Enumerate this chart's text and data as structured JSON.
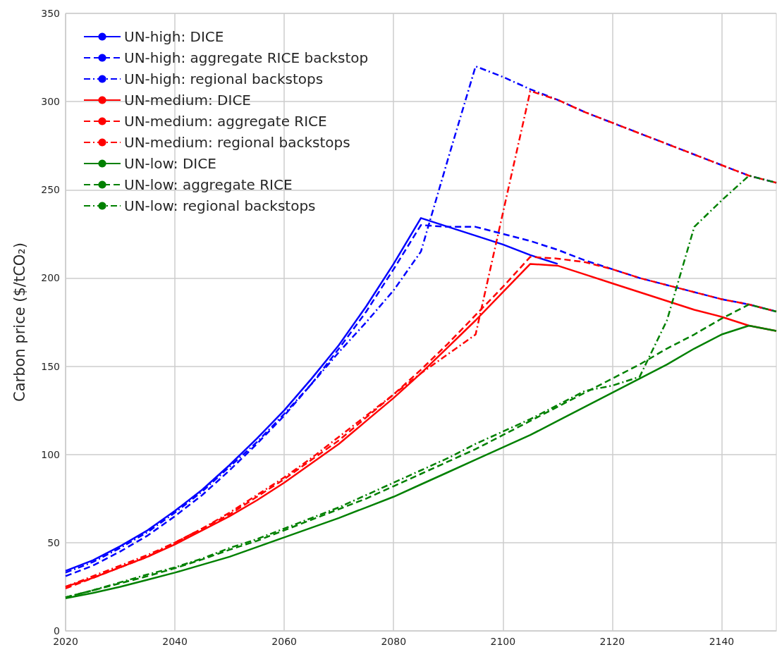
{
  "chart_data": {
    "type": "line",
    "ylabel": "Carbon price ($/tCO₂)",
    "x": [
      2020,
      2025,
      2030,
      2035,
      2040,
      2045,
      2050,
      2055,
      2060,
      2065,
      2070,
      2075,
      2080,
      2085,
      2090,
      2095,
      2100,
      2105,
      2110,
      2115,
      2120,
      2125,
      2130,
      2135,
      2140,
      2145,
      2150
    ],
    "xlim": [
      2020,
      2150
    ],
    "xticks": [
      2020,
      2040,
      2060,
      2080,
      2100,
      2120,
      2140
    ],
    "ylim": [
      0,
      350
    ],
    "yticks": [
      0,
      50,
      100,
      150,
      200,
      250,
      300,
      350
    ],
    "grid": true,
    "legend": "top left",
    "marker": "none",
    "series": [
      {
        "name": "UN-high: DICE",
        "color": "#0000ff",
        "line_style": "solid",
        "values": [
          34,
          40,
          48,
          57,
          68,
          80,
          94,
          109,
          125,
          143,
          162,
          184,
          208,
          234,
          229,
          224,
          219,
          213,
          208,
          null,
          null,
          null,
          null,
          null,
          null,
          null,
          null
        ]
      },
      {
        "name": "UN-high: aggregate RICE backstop",
        "color": "#0000ff",
        "line_style": "dashed",
        "values": [
          31,
          37,
          45,
          54,
          65,
          77,
          91,
          106,
          122,
          140,
          160,
          181,
          205,
          230,
          229,
          229,
          225,
          221,
          216,
          210,
          205,
          200,
          196,
          192,
          188,
          185,
          181
        ]
      },
      {
        "name": "UN-high: regional backstops",
        "color": "#0000ff",
        "line_style": "dotted",
        "values": [
          33,
          39,
          47,
          56,
          67,
          79,
          93,
          107,
          123,
          140,
          158,
          175,
          193,
          215,
          268,
          320,
          314,
          307,
          301,
          294,
          288,
          282,
          276,
          270,
          264,
          258,
          254
        ]
      },
      {
        "name": "UN-medium: DICE",
        "color": "#ff0000",
        "line_style": "solid",
        "values": [
          25,
          30,
          36,
          42,
          49,
          57,
          65,
          74,
          84,
          95,
          106,
          119,
          132,
          146,
          161,
          176,
          192,
          208,
          207,
          202,
          197,
          192,
          187,
          182,
          178,
          173,
          170
        ]
      },
      {
        "name": "UN-medium: aggregate RICE",
        "color": "#ff0000",
        "line_style": "dashed",
        "values": [
          24,
          30,
          36,
          42,
          50,
          58,
          66,
          76,
          86,
          97,
          108,
          121,
          134,
          148,
          163,
          179,
          195,
          212,
          211,
          209,
          205,
          200,
          196,
          192,
          188,
          185,
          181
        ]
      },
      {
        "name": "UN-medium: regional backstops",
        "color": "#ff0000",
        "line_style": "dotted",
        "values": [
          25,
          31,
          37,
          43,
          50,
          58,
          67,
          77,
          87,
          98,
          110,
          122,
          134,
          146,
          157,
          168,
          237,
          306,
          301,
          294,
          288,
          282,
          276,
          270,
          264,
          258,
          254
        ]
      },
      {
        "name": "UN-low: DICE",
        "color": "#008000",
        "line_style": "solid",
        "values": [
          18.5,
          21.5,
          25,
          29,
          33,
          37.5,
          42,
          47.5,
          53,
          58.5,
          64,
          70,
          76,
          83,
          90,
          97,
          104,
          111,
          119,
          127,
          135,
          143,
          151,
          160,
          168,
          173,
          170
        ]
      },
      {
        "name": "UN-low: aggregate RICE",
        "color": "#008000",
        "line_style": "dashed",
        "values": [
          19,
          23,
          27,
          31,
          35.5,
          40.5,
          46,
          51,
          57,
          63,
          69,
          75,
          82,
          89,
          96,
          103,
          111,
          119,
          127,
          135,
          143,
          151,
          160,
          168,
          177,
          185,
          181
        ]
      },
      {
        "name": "UN-low: regional backstops",
        "color": "#008000",
        "line_style": "dotted",
        "values": [
          19,
          23,
          27.5,
          32,
          36,
          41,
          47,
          52,
          58,
          64,
          70,
          77,
          84,
          91,
          98,
          106,
          113,
          120,
          128,
          136,
          139,
          144,
          176,
          229,
          244,
          258,
          254
        ]
      }
    ]
  }
}
